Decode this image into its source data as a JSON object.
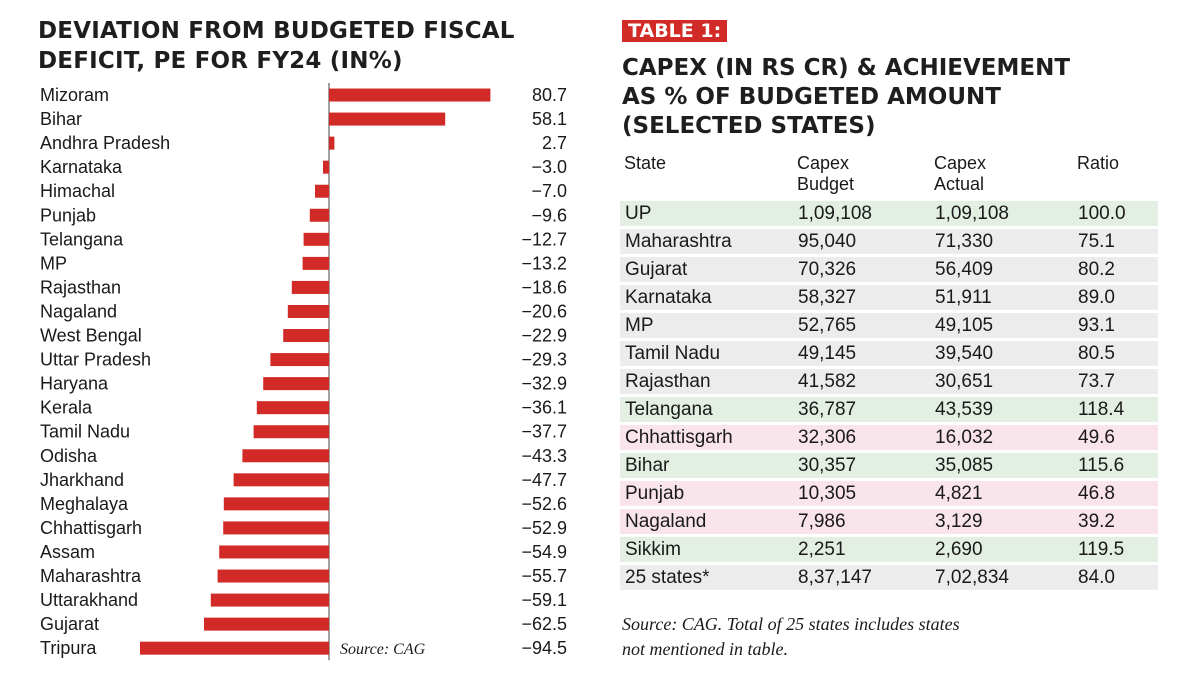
{
  "chart_data": {
    "type": "bar",
    "orientation": "horizontal",
    "title": "DEVIATION FROM BUDGETED FISCAL DEFICIT, PE FOR FY24 (IN%)",
    "title_lines": [
      "DEVIATION FROM BUDGETED FISCAL",
      "DEFICIT, PE FOR FY24 (IN%)"
    ],
    "categories": [
      "Mizoram",
      "Bihar",
      "Andhra Pradesh",
      "Karnataka",
      "Himachal",
      "Punjab",
      "Telangana",
      "MP",
      "Rajasthan",
      "Nagaland",
      "West Bengal",
      "Uttar Pradesh",
      "Haryana",
      "Kerala",
      "Tamil Nadu",
      "Odisha",
      "Jharkhand",
      "Meghalaya",
      "Chhattisgarh",
      "Assam",
      "Maharashtra",
      "Uttarakhand",
      "Gujarat",
      "Tripura"
    ],
    "values": [
      80.7,
      58.1,
      2.7,
      -3.0,
      -7.0,
      -9.6,
      -12.7,
      -13.2,
      -18.6,
      -20.6,
      -22.9,
      -29.3,
      -32.9,
      -36.1,
      -37.7,
      -43.3,
      -47.7,
      -52.6,
      -52.9,
      -54.9,
      -55.7,
      -59.1,
      -62.5,
      -94.5
    ],
    "value_labels": [
      "80.7",
      "58.1",
      "2.7",
      "−3.0",
      "−7.0",
      "−9.6",
      "−12.7",
      "−13.2",
      "−18.6",
      "−20.6",
      "−22.9",
      "−29.3",
      "−32.9",
      "−36.1",
      "−37.7",
      "−43.3",
      "−47.7",
      "−52.6",
      "−52.9",
      "−54.9",
      "−55.7",
      "−59.1",
      "−62.5",
      "−94.5"
    ],
    "xlim": [
      -100,
      85
    ],
    "color": "#d22a26",
    "source": "Source: CAG"
  },
  "table": {
    "tag": "TABLE 1:",
    "title_lines": [
      "CAPEX (IN RS CR) & ACHIEVEMENT",
      "AS % OF BUDGETED AMOUNT",
      "(SELECTED STATES)"
    ],
    "headers": [
      [
        "State"
      ],
      [
        "Capex",
        "Budget"
      ],
      [
        "Capex",
        "Actual"
      ],
      [
        "Ratio"
      ]
    ],
    "rows": [
      {
        "state": "UP",
        "budget": "1,09,108",
        "actual": "1,09,108",
        "ratio": "100.0",
        "tone": "green"
      },
      {
        "state": "Maharashtra",
        "budget": "95,040",
        "actual": "71,330",
        "ratio": "75.1",
        "tone": "grey"
      },
      {
        "state": "Gujarat",
        "budget": "70,326",
        "actual": "56,409",
        "ratio": "80.2",
        "tone": "grey"
      },
      {
        "state": "Karnataka",
        "budget": "58,327",
        "actual": "51,911",
        "ratio": "89.0",
        "tone": "grey"
      },
      {
        "state": "MP",
        "budget": "52,765",
        "actual": "49,105",
        "ratio": "93.1",
        "tone": "grey"
      },
      {
        "state": "Tamil Nadu",
        "budget": "49,145",
        "actual": "39,540",
        "ratio": "80.5",
        "tone": "grey"
      },
      {
        "state": "Rajasthan",
        "budget": "41,582",
        "actual": "30,651",
        "ratio": "73.7",
        "tone": "grey"
      },
      {
        "state": "Telangana",
        "budget": "36,787",
        "actual": "43,539",
        "ratio": "118.4",
        "tone": "green"
      },
      {
        "state": "Chhattisgarh",
        "budget": "32,306",
        "actual": "16,032",
        "ratio": "49.6",
        "tone": "pink"
      },
      {
        "state": "Bihar",
        "budget": "30,357",
        "actual": "35,085",
        "ratio": "115.6",
        "tone": "green"
      },
      {
        "state": "Punjab",
        "budget": "10,305",
        "actual": "4,821",
        "ratio": "46.8",
        "tone": "pink"
      },
      {
        "state": "Nagaland",
        "budget": "7,986",
        "actual": "3,129",
        "ratio": "39.2",
        "tone": "pink"
      },
      {
        "state": "Sikkim",
        "budget": "2,251",
        "actual": "2,690",
        "ratio": "119.5",
        "tone": "green"
      },
      {
        "state": "25 states*",
        "budget": "8,37,147",
        "actual": "7,02,834",
        "ratio": "84.0",
        "tone": "total"
      }
    ],
    "source_lines": [
      "Source: CAG. Total of 25 states includes states",
      "not mentioned in table."
    ]
  }
}
